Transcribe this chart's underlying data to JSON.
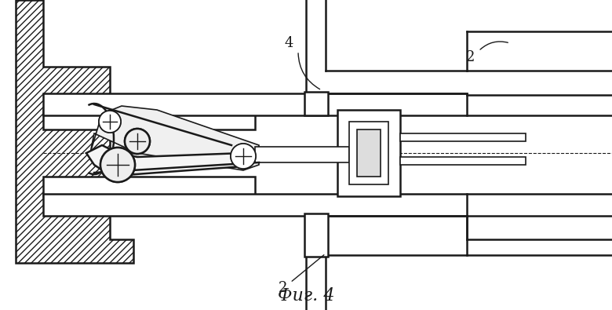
{
  "bg_color": "#ffffff",
  "line_color": "#1a1a1a",
  "hatch_color": "#1a1a1a",
  "title": "Фиг. 4",
  "label_2_top": "2",
  "label_2_bottom": "2",
  "label_4": "4",
  "title_fontsize": 16,
  "label_fontsize": 13,
  "fig_width": 7.8,
  "fig_height": 3.95,
  "dpi": 100
}
